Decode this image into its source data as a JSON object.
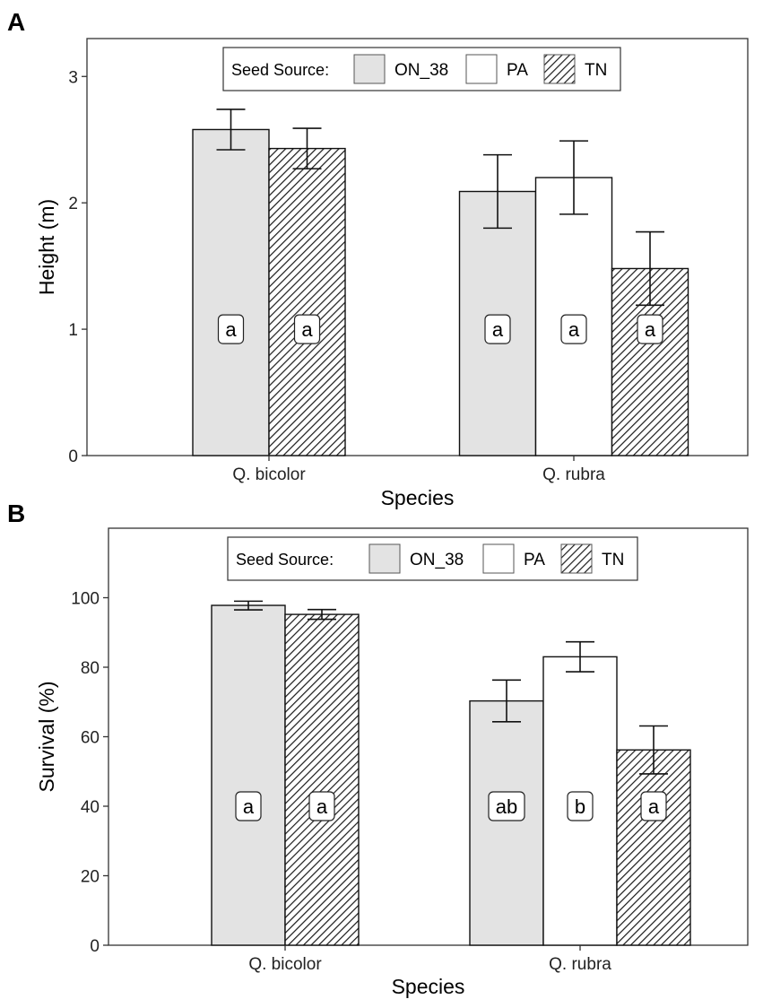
{
  "chart_data": [
    {
      "panel": "A",
      "type": "bar",
      "xlabel": "Species",
      "ylabel": "Height (m)",
      "ylim": [
        0,
        3.3
      ],
      "yticks": [
        0,
        1,
        2,
        3
      ],
      "categories": [
        "Q. bicolor",
        "Q. rubra"
      ],
      "legend": {
        "title": "Seed Source:",
        "placement": "top-center",
        "entries": [
          {
            "name": "ON_38",
            "fill": "#e3e3e3",
            "hatched": false
          },
          {
            "name": "PA",
            "fill": "#ffffff",
            "hatched": false
          },
          {
            "name": "TN",
            "fill": "#ffffff",
            "hatched": true
          }
        ]
      },
      "bars": [
        {
          "category": "Q. bicolor",
          "series": "ON_38",
          "value": 2.58,
          "err_low": 2.42,
          "err_high": 2.74,
          "label": "a"
        },
        {
          "category": "Q. bicolor",
          "series": "TN",
          "value": 2.43,
          "err_low": 2.27,
          "err_high": 2.59,
          "label": "a"
        },
        {
          "category": "Q. rubra",
          "series": "ON_38",
          "value": 2.09,
          "err_low": 1.8,
          "err_high": 2.38,
          "label": "a"
        },
        {
          "category": "Q. rubra",
          "series": "PA",
          "value": 2.2,
          "err_low": 1.91,
          "err_high": 2.49,
          "label": "a"
        },
        {
          "category": "Q. rubra",
          "series": "TN",
          "value": 1.48,
          "err_low": 1.19,
          "err_high": 1.77,
          "label": "a"
        }
      ],
      "label_y": 1.0
    },
    {
      "panel": "B",
      "type": "bar",
      "xlabel": "Species",
      "ylabel": "Survival (%)",
      "ylim": [
        0,
        120
      ],
      "yticks": [
        0,
        20,
        40,
        60,
        80,
        100
      ],
      "categories": [
        "Q. bicolor",
        "Q. rubra"
      ],
      "legend": {
        "title": "Seed Source:",
        "placement": "top-center",
        "entries": [
          {
            "name": "ON_38",
            "fill": "#e3e3e3",
            "hatched": false
          },
          {
            "name": "PA",
            "fill": "#ffffff",
            "hatched": false
          },
          {
            "name": "TN",
            "fill": "#ffffff",
            "hatched": true
          }
        ]
      },
      "bars": [
        {
          "category": "Q. bicolor",
          "series": "ON_38",
          "value": 97.8,
          "err_low": 96.5,
          "err_high": 99.0,
          "label": "a"
        },
        {
          "category": "Q. bicolor",
          "series": "TN",
          "value": 95.2,
          "err_low": 93.8,
          "err_high": 96.6,
          "label": "a"
        },
        {
          "category": "Q. rubra",
          "series": "ON_38",
          "value": 70.3,
          "err_low": 64.3,
          "err_high": 76.3,
          "label": "ab"
        },
        {
          "category": "Q. rubra",
          "series": "PA",
          "value": 83.0,
          "err_low": 78.7,
          "err_high": 87.3,
          "label": "b"
        },
        {
          "category": "Q. rubra",
          "series": "TN",
          "value": 56.2,
          "err_low": 49.3,
          "err_high": 63.1,
          "label": "a"
        }
      ],
      "label_y": 40
    }
  ]
}
